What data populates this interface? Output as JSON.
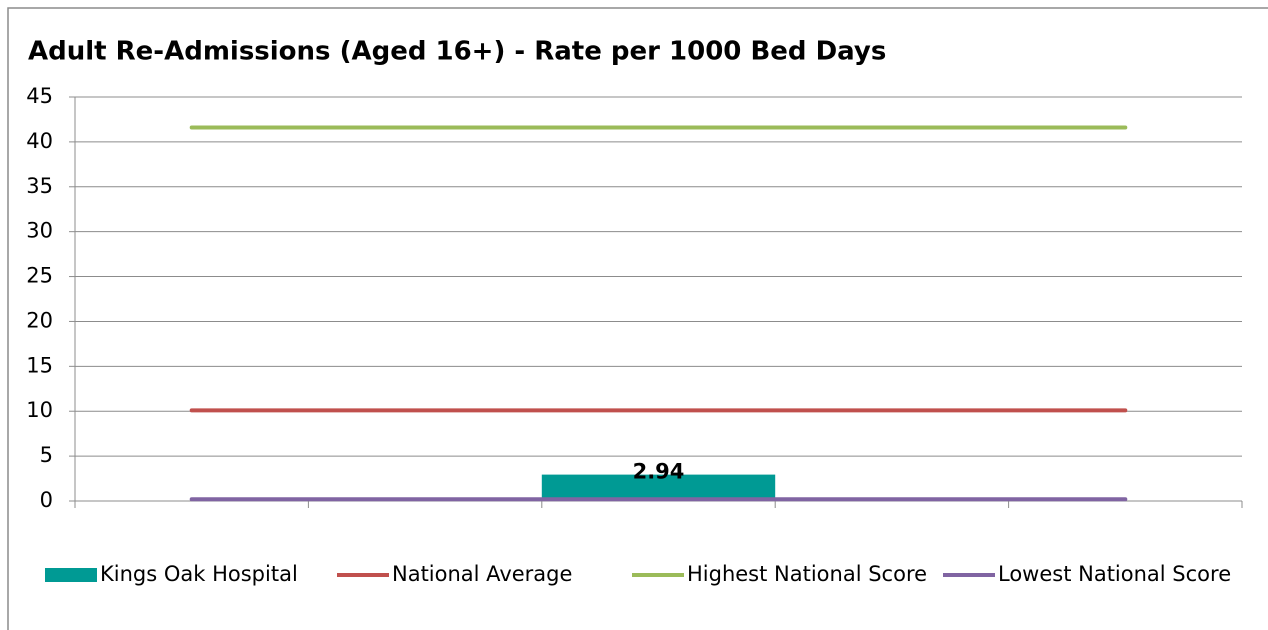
{
  "chart_data": {
    "type": "bar",
    "title": "Adult Re-Admissions (Aged 16+) - Rate per 1000 Bed Days",
    "categories": [
      null,
      null,
      null,
      null,
      null
    ],
    "series": [
      {
        "name": "Kings Oak Hospital",
        "type": "bar",
        "color": "#009a94",
        "values": [
          null,
          null,
          2.94,
          null,
          null
        ]
      },
      {
        "name": "National Average",
        "type": "line",
        "color": "#c0504d",
        "values": [
          10.1,
          10.1,
          10.1,
          10.1,
          10.1
        ]
      },
      {
        "name": "Highest National Score",
        "type": "line",
        "color": "#9bbb59",
        "values": [
          41.6,
          41.6,
          41.6,
          41.6,
          41.6
        ]
      },
      {
        "name": "Lowest National Score",
        "type": "line",
        "color": "#8064a2",
        "values": [
          0.2,
          0.2,
          0.2,
          0.2,
          0.2
        ]
      }
    ],
    "ylim": [
      0,
      45
    ],
    "yticks": [
      0,
      5,
      10,
      15,
      20,
      25,
      30,
      35,
      40,
      45
    ],
    "grid": true,
    "legend": "bottom"
  }
}
